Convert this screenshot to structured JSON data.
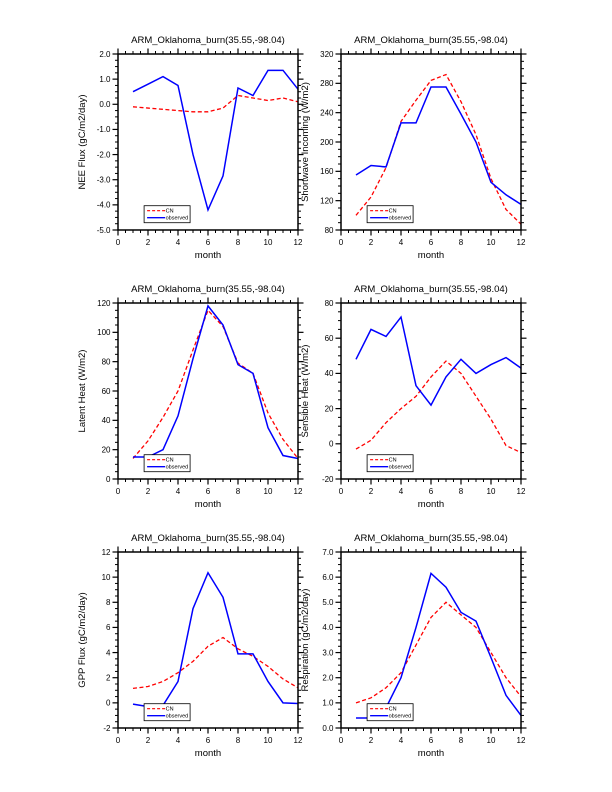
{
  "figure": {
    "background": "#ffffff",
    "grid_rows": 3,
    "grid_columns": 2,
    "axis_color": "#000000"
  },
  "chart_data": [
    {
      "type": "line",
      "title": "ARM_Oklahoma_burn(35.55,-98.04)",
      "xlabel": "month",
      "ylabel": "NEE Flux (gC/m2/day)",
      "x": [
        1,
        2,
        3,
        4,
        5,
        6,
        7,
        8,
        9,
        10,
        11,
        12
      ],
      "xlim": [
        0,
        12
      ],
      "ylim": [
        -5.0,
        2.0
      ],
      "xtick_values": [
        0,
        2,
        4,
        6,
        8,
        10,
        12
      ],
      "xtick_labels": [
        "0",
        "2",
        "4",
        "6",
        "8",
        "10",
        "12"
      ],
      "xminor_step": 0.5,
      "ytick_values": [
        2,
        1,
        0,
        -1,
        -2,
        -3,
        -4,
        -5
      ],
      "ytick_labels": [
        "2.0",
        "1.0",
        "0.0",
        "-1.0",
        "-2.0",
        "-3.0",
        "-4.0",
        "-5.0"
      ],
      "yminor_step": 0.25,
      "grid": false,
      "legend_position": "lower-left",
      "series": [
        {
          "name": "CN",
          "color": "#ff0000",
          "line_style": "dashed",
          "values": [
            -0.1,
            -0.15,
            -0.2,
            -0.25,
            -0.3,
            -0.3,
            -0.15,
            0.35,
            0.25,
            0.15,
            0.25,
            0.1
          ]
        },
        {
          "name": "observed",
          "color": "#0000ff",
          "line_style": "solid",
          "values": [
            0.5,
            0.8,
            1.1,
            0.75,
            -2.0,
            -4.2,
            -2.85,
            0.65,
            0.35,
            1.35,
            1.35,
            0.6
          ]
        }
      ]
    },
    {
      "type": "line",
      "title": "ARM_Oklahoma_burn(35.55,-98.04)",
      "xlabel": "month",
      "ylabel": "Shortwave Incoming (W/m2)",
      "x": [
        1,
        2,
        3,
        4,
        5,
        6,
        7,
        8,
        9,
        10,
        11,
        12
      ],
      "xlim": [
        0,
        12
      ],
      "ylim": [
        80,
        320
      ],
      "xtick_values": [
        0,
        2,
        4,
        6,
        8,
        10,
        12
      ],
      "xtick_labels": [
        "0",
        "2",
        "4",
        "6",
        "8",
        "10",
        "12"
      ],
      "xminor_step": 0.5,
      "ytick_values": [
        320,
        280,
        240,
        200,
        160,
        120,
        80
      ],
      "ytick_labels": [
        "320",
        "280",
        "240",
        "200",
        "160",
        "120",
        "80"
      ],
      "yminor_step": 10,
      "grid": false,
      "legend_position": "lower-left",
      "series": [
        {
          "name": "CN",
          "color": "#ff0000",
          "line_style": "dashed",
          "values": [
            100,
            125,
            165,
            228,
            257,
            284,
            292,
            255,
            210,
            150,
            108,
            88
          ]
        },
        {
          "name": "observed",
          "color": "#0000ff",
          "line_style": "solid",
          "values": [
            155,
            168,
            166,
            226,
            226,
            275,
            275,
            238,
            200,
            145,
            128,
            115
          ]
        }
      ]
    },
    {
      "type": "line",
      "title": "ARM_Oklahoma_burn(35.55,-98.04)",
      "xlabel": "month",
      "ylabel": "Latent Heat (W/m2)",
      "x": [
        1,
        2,
        3,
        4,
        5,
        6,
        7,
        8,
        9,
        10,
        11,
        12
      ],
      "xlim": [
        0,
        12
      ],
      "ylim": [
        0,
        120
      ],
      "xtick_values": [
        0,
        2,
        4,
        6,
        8,
        10,
        12
      ],
      "xtick_labels": [
        "0",
        "2",
        "4",
        "6",
        "8",
        "10",
        "12"
      ],
      "xminor_step": 0.5,
      "ytick_values": [
        120,
        100,
        80,
        60,
        40,
        20,
        0
      ],
      "ytick_labels": [
        "120",
        "100",
        "80",
        "60",
        "40",
        "20",
        "0"
      ],
      "yminor_step": 5,
      "grid": false,
      "legend_position": "lower-left",
      "series": [
        {
          "name": "CN",
          "color": "#ff0000",
          "line_style": "dashed",
          "values": [
            14,
            26,
            42,
            60,
            88,
            115,
            104,
            79,
            72,
            45,
            27,
            14
          ]
        },
        {
          "name": "observed",
          "color": "#0000ff",
          "line_style": "solid",
          "values": [
            15,
            15,
            20,
            43,
            82,
            118,
            105,
            78,
            72,
            35,
            16,
            14
          ]
        }
      ]
    },
    {
      "type": "line",
      "title": "ARM_Oklahoma_burn(35.55,-98.04)",
      "xlabel": "month",
      "ylabel": "Sensible Heat (W/m2)",
      "x": [
        1,
        2,
        3,
        4,
        5,
        6,
        7,
        8,
        9,
        10,
        11,
        12
      ],
      "xlim": [
        0,
        12
      ],
      "ylim": [
        -20,
        80
      ],
      "xtick_values": [
        0,
        2,
        4,
        6,
        8,
        10,
        12
      ],
      "xtick_labels": [
        "0",
        "2",
        "4",
        "6",
        "8",
        "10",
        "12"
      ],
      "xminor_step": 0.5,
      "ytick_values": [
        80,
        60,
        40,
        20,
        0,
        -20
      ],
      "ytick_labels": [
        "80",
        "60",
        "40",
        "20",
        "0",
        "-20"
      ],
      "yminor_step": 5,
      "grid": false,
      "legend_position": "lower-left",
      "series": [
        {
          "name": "CN",
          "color": "#ff0000",
          "line_style": "dashed",
          "values": [
            -3,
            2,
            12,
            20,
            27,
            38,
            47,
            40,
            27,
            14,
            -1,
            -5
          ]
        },
        {
          "name": "observed",
          "color": "#0000ff",
          "line_style": "solid",
          "values": [
            48,
            65,
            61,
            72,
            33,
            22,
            38,
            48,
            40,
            45,
            49,
            43
          ]
        }
      ]
    },
    {
      "type": "line",
      "title": "ARM_Oklahoma_burn(35.55,-98.04)",
      "xlabel": "month",
      "ylabel": "GPP Flux (gC/m2/day)",
      "x": [
        1,
        2,
        3,
        4,
        5,
        6,
        7,
        8,
        9,
        10,
        11,
        12
      ],
      "xlim": [
        0,
        12
      ],
      "ylim": [
        -2,
        12
      ],
      "xtick_values": [
        0,
        2,
        4,
        6,
        8,
        10,
        12
      ],
      "xtick_labels": [
        "0",
        "2",
        "4",
        "6",
        "8",
        "10",
        "12"
      ],
      "xminor_step": 0.5,
      "ytick_values": [
        12,
        10,
        8,
        6,
        4,
        2,
        0,
        -2
      ],
      "ytick_labels": [
        "12",
        "10",
        "8",
        "6",
        "4",
        "2",
        "0",
        "-2"
      ],
      "yminor_step": 0.5,
      "grid": false,
      "legend_position": "lower-left",
      "series": [
        {
          "name": "CN",
          "color": "#ff0000",
          "line_style": "dashed",
          "values": [
            1.15,
            1.3,
            1.7,
            2.4,
            3.3,
            4.5,
            5.2,
            4.3,
            3.7,
            2.9,
            1.9,
            1.2
          ]
        },
        {
          "name": "observed",
          "color": "#0000ff",
          "line_style": "solid",
          "values": [
            -0.1,
            -0.3,
            -0.2,
            1.7,
            7.5,
            10.35,
            8.4,
            3.9,
            3.9,
            1.7,
            0.0,
            -0.05
          ]
        }
      ]
    },
    {
      "type": "line",
      "title": "ARM_Oklahoma_burn(35.55,-98.04)",
      "xlabel": "month",
      "ylabel": "Respiration (gC/m2/day)",
      "x": [
        1,
        2,
        3,
        4,
        5,
        6,
        7,
        8,
        9,
        10,
        11,
        12
      ],
      "xlim": [
        0,
        12
      ],
      "ylim": [
        0.0,
        7.0
      ],
      "xtick_values": [
        0,
        2,
        4,
        6,
        8,
        10,
        12
      ],
      "xtick_labels": [
        "0",
        "2",
        "4",
        "6",
        "8",
        "10",
        "12"
      ],
      "xminor_step": 0.5,
      "ytick_values": [
        7,
        6,
        5,
        4,
        3,
        2,
        1,
        0
      ],
      "ytick_labels": [
        "7.0",
        "6.0",
        "5.0",
        "4.0",
        "3.0",
        "2.0",
        "1.0",
        "0.0"
      ],
      "yminor_step": 0.25,
      "grid": false,
      "legend_position": "lower-left",
      "series": [
        {
          "name": "CN",
          "color": "#ff0000",
          "line_style": "dashed",
          "values": [
            1.0,
            1.2,
            1.6,
            2.2,
            3.3,
            4.4,
            5.0,
            4.5,
            4.0,
            3.0,
            2.0,
            1.25
          ]
        },
        {
          "name": "observed",
          "color": "#0000ff",
          "line_style": "solid",
          "values": [
            0.4,
            0.4,
            0.8,
            2.0,
            4.0,
            6.15,
            5.6,
            4.6,
            4.25,
            2.8,
            1.3,
            0.5
          ]
        }
      ]
    }
  ]
}
